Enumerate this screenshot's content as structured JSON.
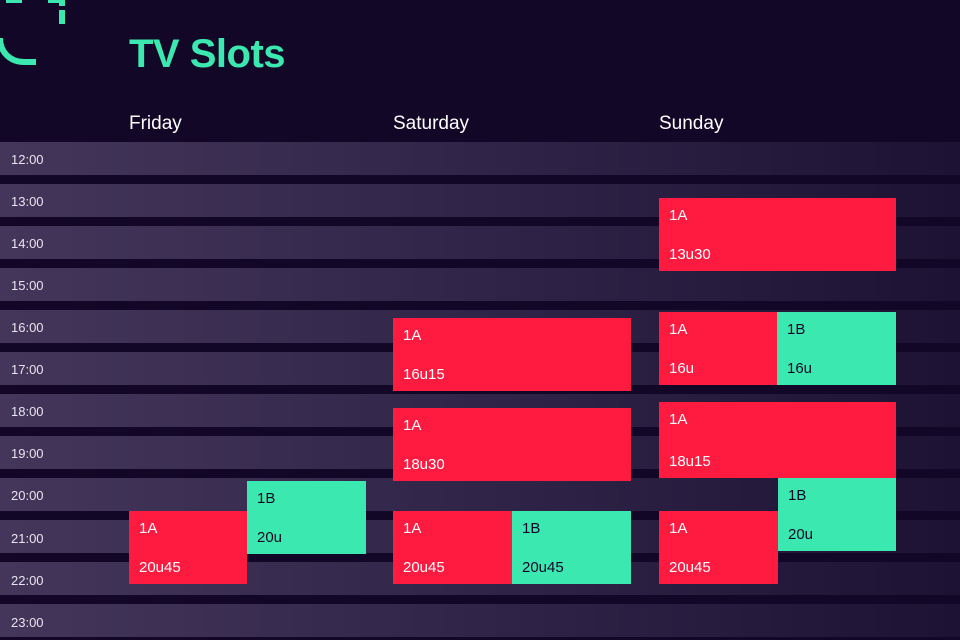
{
  "header": {
    "title": "TV Slots",
    "logo_icon": "corner-bracket-logo"
  },
  "colors": {
    "background": "#120727",
    "accent_green": "#3be8b0",
    "accent_red": "#ff1a40"
  },
  "days": [
    "Friday",
    "Saturday",
    "Sunday"
  ],
  "times": [
    "12:00",
    "13:00",
    "14:00",
    "15:00",
    "16:00",
    "17:00",
    "18:00",
    "19:00",
    "20:00",
    "21:00",
    "22:00",
    "23:00"
  ],
  "slots": [
    {
      "day": "Friday",
      "code": "1A",
      "time": "20u45",
      "color": "red"
    },
    {
      "day": "Friday",
      "code": "1B",
      "time": "20u",
      "color": "green"
    },
    {
      "day": "Saturday",
      "code": "1A",
      "time": "16u15",
      "color": "red"
    },
    {
      "day": "Saturday",
      "code": "1A",
      "time": "18u30",
      "color": "red"
    },
    {
      "day": "Saturday",
      "code": "1A",
      "time": "20u45",
      "color": "red"
    },
    {
      "day": "Saturday",
      "code": "1B",
      "time": "20u45",
      "color": "green"
    },
    {
      "day": "Sunday",
      "code": "1A",
      "time": "13u30",
      "color": "red"
    },
    {
      "day": "Sunday",
      "code": "1A",
      "time": "16u",
      "color": "red"
    },
    {
      "day": "Sunday",
      "code": "1B",
      "time": "16u",
      "color": "green"
    },
    {
      "day": "Sunday",
      "code": "1A",
      "time": "18u15",
      "color": "red"
    },
    {
      "day": "Sunday",
      "code": "1B",
      "time": "20u",
      "color": "green"
    },
    {
      "day": "Sunday",
      "code": "1A",
      "time": "20u45",
      "color": "red"
    }
  ]
}
